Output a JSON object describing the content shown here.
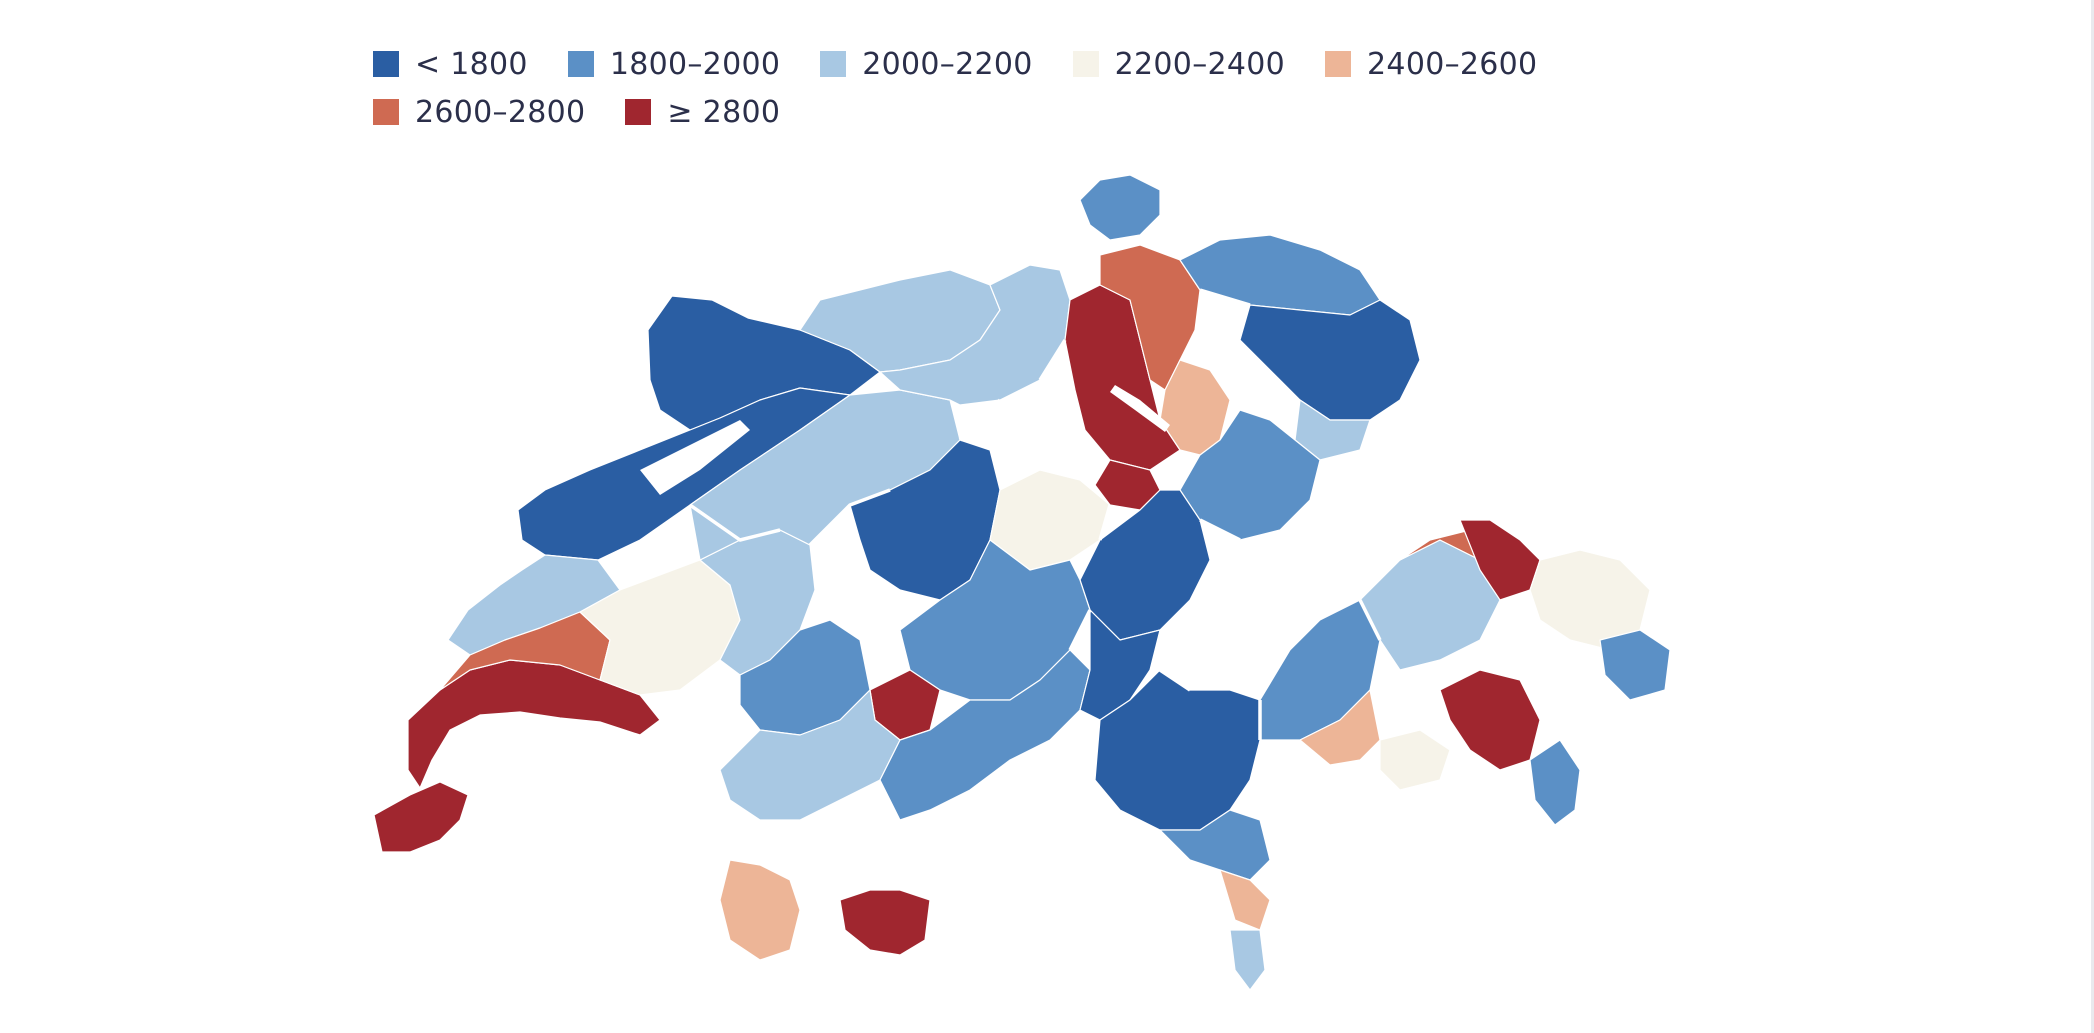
{
  "legend": {
    "rows": [
      [
        {
          "label": "< 1800",
          "color": "#2a5ea3"
        },
        {
          "label": "1800–2000",
          "color": "#5b90c6"
        },
        {
          "label": "2000–2200",
          "color": "#a8c8e3"
        },
        {
          "label": "2200–2400",
          "color": "#f6f3e9"
        },
        {
          "label": "2400–2600",
          "color": "#edb597"
        }
      ],
      [
        {
          "label": "2600–2800",
          "color": "#cf6a52"
        },
        {
          "label": "≥ 2800",
          "color": "#a0262f"
        }
      ]
    ]
  },
  "map": {
    "regions": [
      {
        "name": "jura-north",
        "cls": 0
      },
      {
        "name": "jura-south",
        "cls": 0
      },
      {
        "name": "vaud-jura-foot",
        "cls": 2
      },
      {
        "name": "geneva",
        "cls": 6
      },
      {
        "name": "lake-geneva-north-shore",
        "cls": 6
      },
      {
        "name": "lake-geneva-west",
        "cls": 5
      },
      {
        "name": "vaud-plateau",
        "cls": 3
      },
      {
        "name": "vaud-broye",
        "cls": 2
      },
      {
        "name": "fribourg",
        "cls": 1
      },
      {
        "name": "bern-seeland",
        "cls": 2
      },
      {
        "name": "bern-emmental",
        "cls": 0
      },
      {
        "name": "basel-plateau",
        "cls": 2
      },
      {
        "name": "aargau",
        "cls": 2
      },
      {
        "name": "zurich-core",
        "cls": 6
      },
      {
        "name": "zurich-ring",
        "cls": 5
      },
      {
        "name": "zurich-outer",
        "cls": 4
      },
      {
        "name": "zug",
        "cls": 6
      },
      {
        "name": "lucerne",
        "cls": 3
      },
      {
        "name": "schaffhausen",
        "cls": 1
      },
      {
        "name": "thurgau",
        "cls": 1
      },
      {
        "name": "st-gallen",
        "cls": 0
      },
      {
        "name": "appenzell",
        "cls": 2
      },
      {
        "name": "schwyz-glarus",
        "cls": 1
      },
      {
        "name": "uri",
        "cls": 0
      },
      {
        "name": "bernese-oberland",
        "cls": 1
      },
      {
        "name": "saanen",
        "cls": 6
      },
      {
        "name": "wallis-west",
        "cls": 2
      },
      {
        "name": "wallis-center",
        "cls": 1
      },
      {
        "name": "wallis-east",
        "cls": 0
      },
      {
        "name": "zermatt",
        "cls": 6
      },
      {
        "name": "saas",
        "cls": 4
      },
      {
        "name": "ticino-north",
        "cls": 0
      },
      {
        "name": "ticino-center",
        "cls": 1
      },
      {
        "name": "lugano",
        "cls": 4
      },
      {
        "name": "mendrisio",
        "cls": 2
      },
      {
        "name": "graubuenden-west",
        "cls": 1
      },
      {
        "name": "graubuenden-center",
        "cls": 2
      },
      {
        "name": "davos",
        "cls": 5
      },
      {
        "name": "prattigau",
        "cls": 6
      },
      {
        "name": "engadin",
        "cls": 6
      },
      {
        "name": "lower-engadin",
        "cls": 3
      },
      {
        "name": "muenstertal",
        "cls": 1
      },
      {
        "name": "poschiavo",
        "cls": 1
      },
      {
        "name": "misox",
        "cls": 3
      },
      {
        "name": "chur",
        "cls": 4
      }
    ]
  }
}
